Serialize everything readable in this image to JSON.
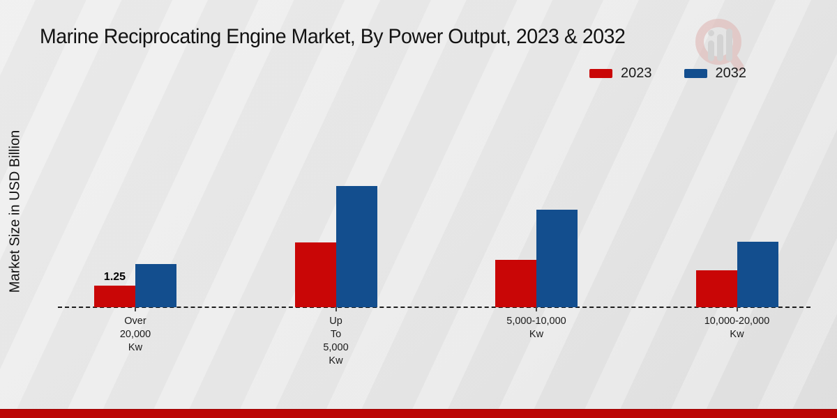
{
  "chart_data": {
    "type": "bar",
    "title": "Marine Reciprocating Engine Market, By Power Output, 2023 & 2032",
    "ylabel": "Market Size in USD Billion",
    "xlabel": "",
    "categories": [
      [
        "Over",
        "20,000",
        "Kw"
      ],
      [
        "Up",
        "To",
        "5,000",
        "Kw"
      ],
      [
        "5,000-10,000",
        "Kw"
      ],
      [
        "10,000-20,000",
        "Kw"
      ]
    ],
    "series": [
      {
        "name": "2023",
        "color": "#c90606",
        "values": [
          1.25,
          3.75,
          2.75,
          2.15
        ],
        "labels": [
          "1.25",
          "",
          "",
          ""
        ]
      },
      {
        "name": "2032",
        "color": "#134e8e",
        "values": [
          2.5,
          7.0,
          5.65,
          3.8
        ],
        "labels": [
          "",
          "",
          "",
          ""
        ]
      }
    ],
    "ylim": [
      0,
      8
    ],
    "grid": false,
    "legend_position": "top-right",
    "baseline_style": "dashed",
    "accent_band_color": "#bb0605"
  }
}
